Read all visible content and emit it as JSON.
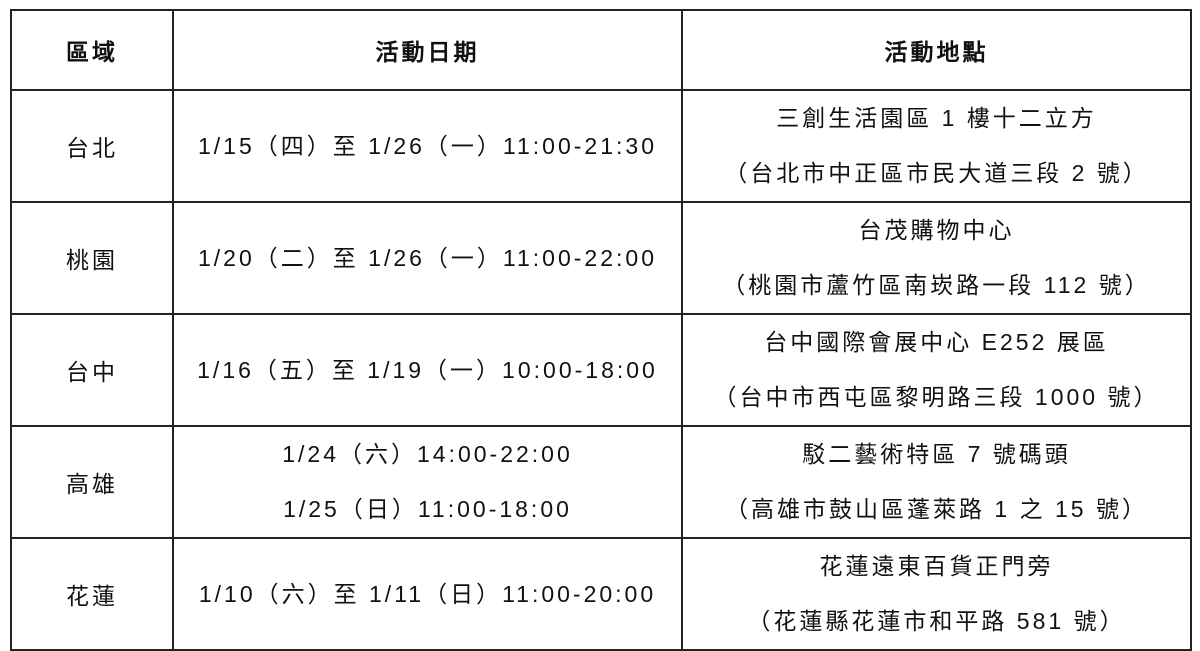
{
  "table": {
    "headers": [
      "區域",
      "活動日期",
      "活動地點"
    ],
    "rows": [
      {
        "region": "台北",
        "dates": [
          "1/15（四）至 1/26（一）11:00-21:30"
        ],
        "venue": [
          "三創生活園區 1 樓十二立方",
          "（台北市中正區市民大道三段 2 號）"
        ]
      },
      {
        "region": "桃園",
        "dates": [
          "1/20（二）至 1/26（一）11:00-22:00"
        ],
        "venue": [
          "台茂購物中心",
          "（桃園市蘆竹區南崁路一段 112 號）"
        ]
      },
      {
        "region": "台中",
        "dates": [
          "1/16（五）至 1/19（一）10:00-18:00"
        ],
        "venue": [
          "台中國際會展中心 E252 展區",
          "（台中市西屯區黎明路三段 1000 號）"
        ]
      },
      {
        "region": "高雄",
        "dates": [
          "1/24（六）14:00-22:00",
          "1/25（日）11:00-18:00"
        ],
        "venue": [
          "駁二藝術特區 7 號碼頭",
          "（高雄市鼓山區蓬萊路 1 之 15 號）"
        ]
      },
      {
        "region": "花蓮",
        "dates": [
          "1/10（六）至 1/11（日）11:00-20:00"
        ],
        "venue": [
          "花蓮遠東百貨正門旁",
          "（花蓮縣花蓮市和平路 581 號）"
        ]
      }
    ]
  }
}
